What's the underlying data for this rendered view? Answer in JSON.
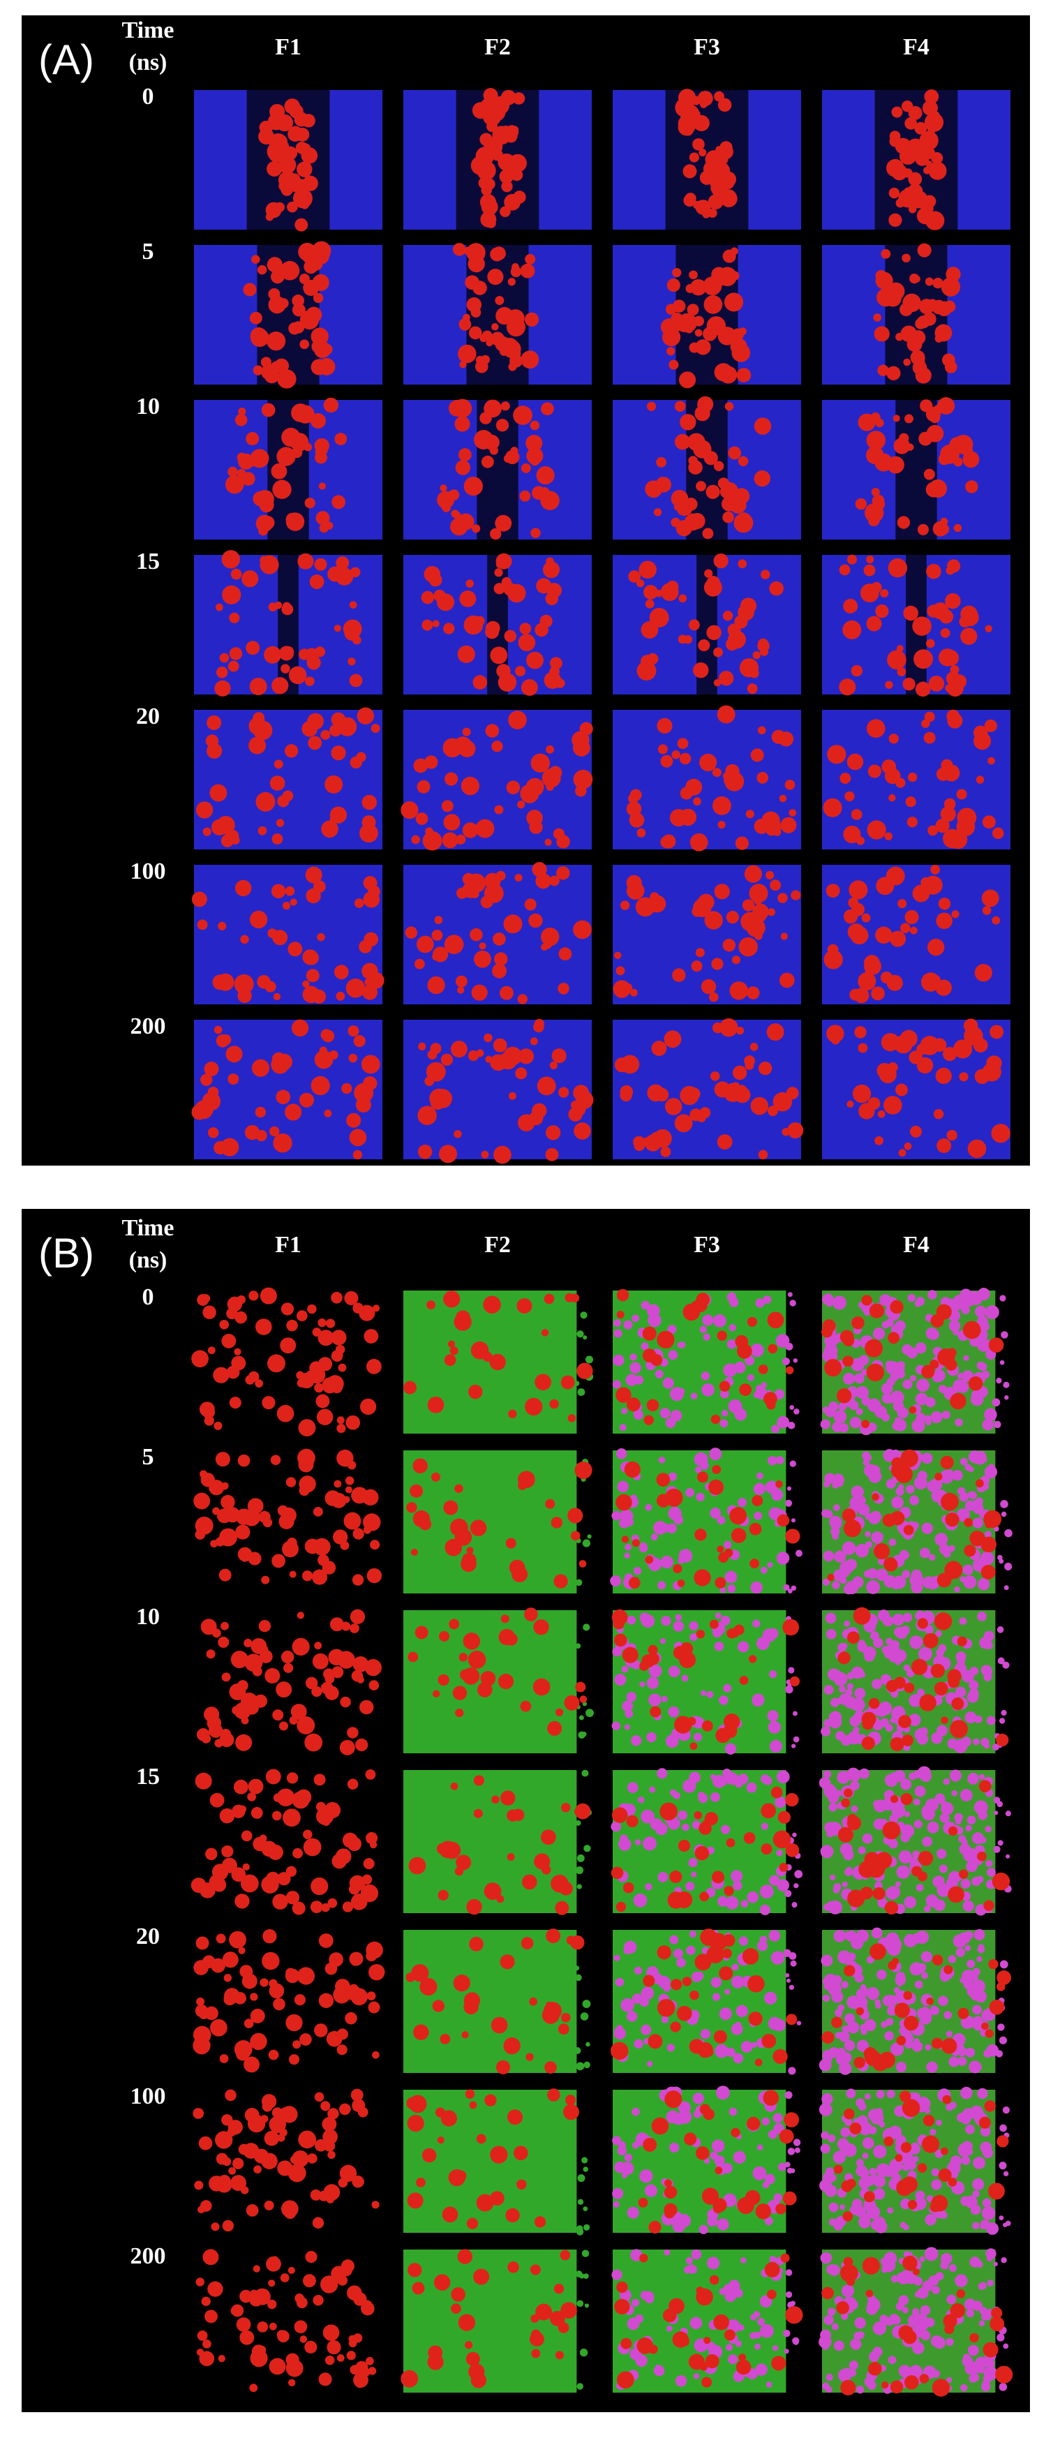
{
  "panels": [
    {
      "label": "(A)",
      "time_header": [
        "Time",
        "(ns)"
      ],
      "columns": [
        "F1",
        "F2",
        "F3",
        "F4"
      ],
      "rows": [
        "0",
        "5",
        "10",
        "15",
        "20",
        "100",
        "200"
      ]
    },
    {
      "label": "(B)",
      "time_header": [
        "Time",
        "(ns)"
      ],
      "columns": [
        "F1",
        "F2",
        "F3",
        "F4"
      ],
      "rows": [
        "0",
        "5",
        "10",
        "15",
        "20",
        "100",
        "200"
      ]
    }
  ]
}
